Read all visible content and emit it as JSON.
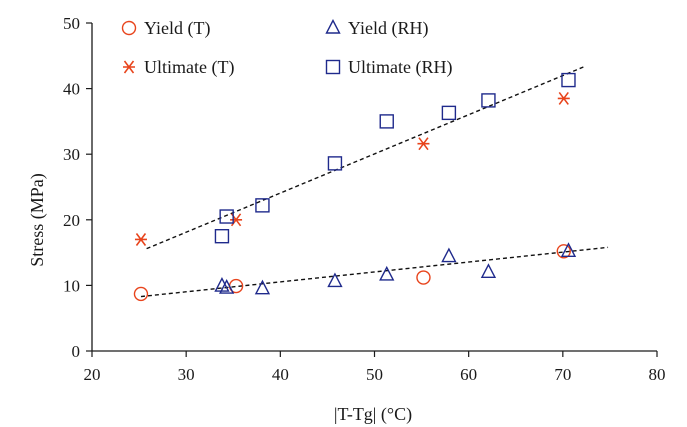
{
  "chart_data": {
    "type": "scatter",
    "title": "",
    "xlabel": "|T-Tg| (°C)",
    "ylabel": "Stress (MPa)",
    "xlim": [
      20,
      80
    ],
    "ylim": [
      0,
      50
    ],
    "xticks": [
      20,
      30,
      40,
      50,
      60,
      70,
      80
    ],
    "yticks": [
      0,
      10,
      20,
      30,
      40,
      50
    ],
    "grid": false,
    "legend_position": "top-left",
    "series": [
      {
        "name": "Yield (T)",
        "marker": "circle",
        "color": "#e8441c",
        "x": [
          25.2,
          35.3,
          55.2,
          70.1
        ],
        "y": [
          8.7,
          9.9,
          11.2,
          15.2
        ]
      },
      {
        "name": "Yield (RH)",
        "marker": "triangle",
        "color": "#1f2a8c",
        "x": [
          33.8,
          34.3,
          38.1,
          45.8,
          51.3,
          57.9,
          62.1,
          70.6
        ],
        "y": [
          9.9,
          9.6,
          9.5,
          10.6,
          11.6,
          14.4,
          12.0,
          15.2
        ]
      },
      {
        "name": "Ultimate (T)",
        "marker": "asterisk",
        "color": "#e8441c",
        "x": [
          25.2,
          35.3,
          55.2,
          70.1
        ],
        "y": [
          17.0,
          20.0,
          31.6,
          38.5
        ]
      },
      {
        "name": "Ultimate (RH)",
        "marker": "square",
        "color": "#1f2a8c",
        "x": [
          33.8,
          34.3,
          38.1,
          45.8,
          51.3,
          57.9,
          62.1,
          70.6
        ],
        "y": [
          17.5,
          20.5,
          22.2,
          28.6,
          35.0,
          36.3,
          38.2,
          41.3
        ]
      }
    ],
    "trendlines": [
      {
        "x": [
          25.8,
          72.2
        ],
        "y": [
          15.6,
          43.3
        ]
      },
      {
        "x": [
          25.2,
          74.8
        ],
        "y": [
          8.3,
          15.8
        ]
      }
    ]
  }
}
